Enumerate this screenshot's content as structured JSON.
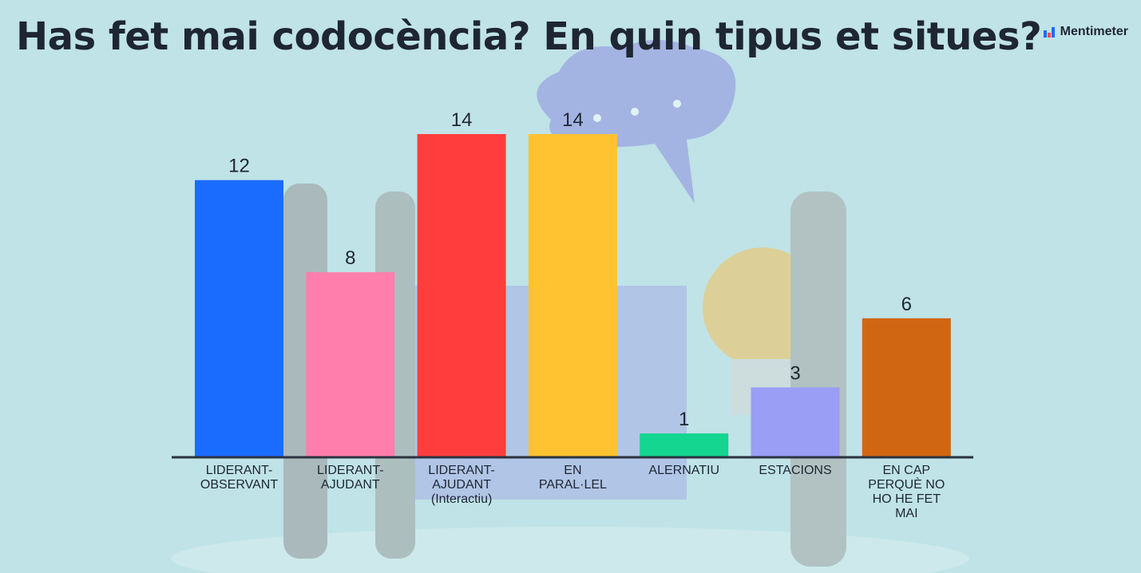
{
  "header": {
    "title": "Has fet mai codocència? En quin tipus et situes?",
    "brand": "Mentimeter"
  },
  "colors": {
    "background": "#bfe3e6",
    "text": "#1f2633",
    "axis": "#2b3340"
  },
  "chart_data": {
    "type": "bar",
    "title": "Has fet mai codocència? En quin tipus et situes?",
    "xlabel": "",
    "ylabel": "",
    "ylim": [
      0,
      14
    ],
    "grid": false,
    "legend": "none",
    "categories": [
      [
        "LIDERANT-",
        "OBSERVANT"
      ],
      [
        "LIDERANT-",
        "AJUDANT"
      ],
      [
        "LIDERANT-",
        "AJUDANT",
        "(Interactiu)"
      ],
      [
        "EN",
        "PARAL·LEL"
      ],
      [
        "ALERNATIU"
      ],
      [
        "ESTACIONS"
      ],
      [
        "EN CAP",
        "PERQUÈ NO",
        "HO HE FET",
        "MAI"
      ]
    ],
    "values": [
      12,
      8,
      14,
      14,
      1,
      3,
      6
    ],
    "bar_colors": [
      "#1a6cff",
      "#ff7eab",
      "#ff3d3d",
      "#ffc230",
      "#14d690",
      "#9a9ef5",
      "#d06611"
    ]
  }
}
